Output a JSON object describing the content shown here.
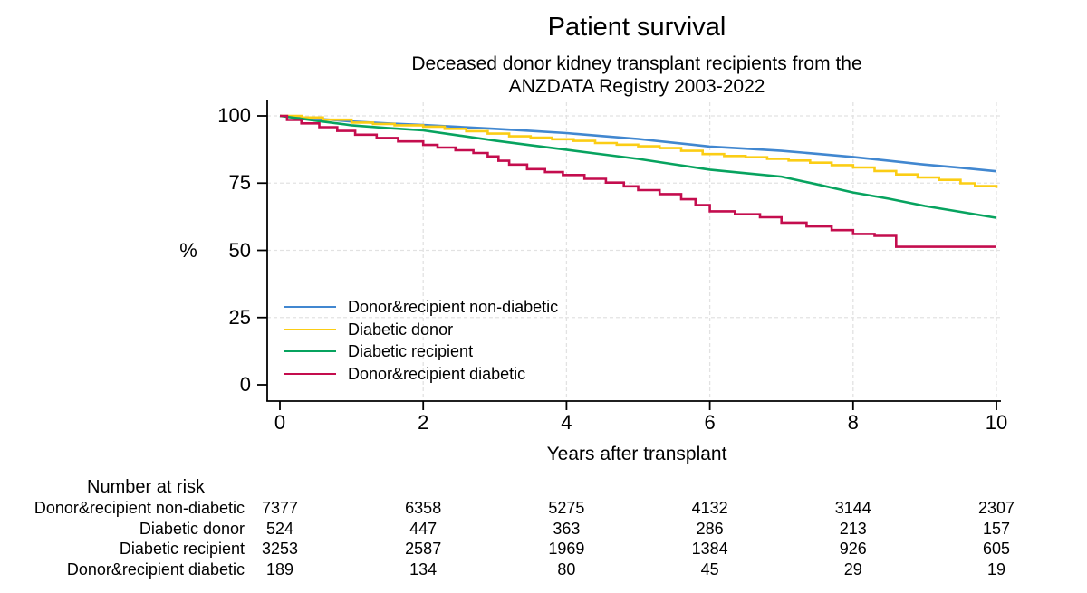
{
  "header": {
    "title": "Patient survival",
    "subtitle_line1": "Deceased donor kidney transplant recipients from the",
    "subtitle_line2": "ANZDATA Registry 2003-2022"
  },
  "chart_data": {
    "type": "line",
    "subtype": "kaplan-meier-survival",
    "title": "Patient survival",
    "subtitle": "Deceased donor kidney transplant recipients from the ANZDATA Registry 2003-2022",
    "xlabel": "Years after transplant",
    "ylabel": "%",
    "xlim": [
      0,
      10
    ],
    "ylim": [
      0,
      100
    ],
    "xticks": [
      0,
      2,
      4,
      6,
      8,
      10
    ],
    "yticks": [
      0,
      25,
      50,
      75,
      100
    ],
    "grid": "dashed light-gray at x 2,4,6,8,10 and y 25,50,75,100",
    "legend_position": "inside lower-left",
    "axis_color": "#000000",
    "grid_color": "#e2e2e2",
    "series": [
      {
        "name": "Donor&recipient non-diabetic",
        "color": "#4187d0",
        "step": false,
        "points": [
          [
            0,
            100
          ],
          [
            0.5,
            99.0
          ],
          [
            1,
            97.9
          ],
          [
            1.5,
            97.2
          ],
          [
            2,
            96.6
          ],
          [
            2.5,
            95.9
          ],
          [
            3,
            95.2
          ],
          [
            3.5,
            94.4
          ],
          [
            4,
            93.6
          ],
          [
            4.5,
            92.5
          ],
          [
            5,
            91.4
          ],
          [
            5.5,
            90.0
          ],
          [
            6,
            88.6
          ],
          [
            6.5,
            87.8
          ],
          [
            7,
            87.0
          ],
          [
            7.5,
            85.9
          ],
          [
            8,
            84.7
          ],
          [
            8.5,
            83.3
          ],
          [
            9,
            81.9
          ],
          [
            9.5,
            80.7
          ],
          [
            10,
            79.4
          ]
        ]
      },
      {
        "name": "Diabetic donor",
        "color": "#fbcd15",
        "step": true,
        "points": [
          [
            0,
            100
          ],
          [
            0.3,
            99.4
          ],
          [
            0.6,
            98.6
          ],
          [
            1,
            97.5
          ],
          [
            1.3,
            97.0
          ],
          [
            1.6,
            96.5
          ],
          [
            2,
            96.0
          ],
          [
            2.3,
            95.2
          ],
          [
            2.6,
            94.3
          ],
          [
            2.9,
            93.4
          ],
          [
            3.2,
            92.4
          ],
          [
            3.5,
            91.9
          ],
          [
            3.8,
            91.3
          ],
          [
            4.1,
            90.7
          ],
          [
            4.4,
            89.9
          ],
          [
            4.7,
            89.3
          ],
          [
            5,
            88.7
          ],
          [
            5.3,
            88.0
          ],
          [
            5.6,
            87.0
          ],
          [
            5.9,
            85.8
          ],
          [
            6.2,
            85.1
          ],
          [
            6.5,
            84.6
          ],
          [
            6.8,
            84.0
          ],
          [
            7.1,
            83.4
          ],
          [
            7.4,
            82.6
          ],
          [
            7.7,
            81.7
          ],
          [
            8,
            80.8
          ],
          [
            8.3,
            79.5
          ],
          [
            8.6,
            78.2
          ],
          [
            8.9,
            77.1
          ],
          [
            9.2,
            76.2
          ],
          [
            9.5,
            74.9
          ],
          [
            9.7,
            73.9
          ],
          [
            10,
            73.2
          ]
        ]
      },
      {
        "name": "Diabetic recipient",
        "color": "#07a35f",
        "step": false,
        "points": [
          [
            0,
            100
          ],
          [
            0.5,
            98.2
          ],
          [
            1,
            96.5
          ],
          [
            1.5,
            95.5
          ],
          [
            2,
            94.6
          ],
          [
            2.5,
            92.7
          ],
          [
            3,
            90.8
          ],
          [
            3.5,
            89.1
          ],
          [
            4,
            87.4
          ],
          [
            4.5,
            85.7
          ],
          [
            5,
            84.0
          ],
          [
            5.5,
            82.0
          ],
          [
            6,
            80.0
          ],
          [
            6.5,
            78.7
          ],
          [
            7,
            77.4
          ],
          [
            7.5,
            74.5
          ],
          [
            8,
            71.5
          ],
          [
            8.5,
            69.2
          ],
          [
            9,
            66.5
          ],
          [
            9.5,
            64.3
          ],
          [
            10,
            62.1
          ]
        ]
      },
      {
        "name": "Donor&recipient diabetic",
        "color": "#c40d4e",
        "step": true,
        "points": [
          [
            0,
            100
          ],
          [
            0.1,
            98.5
          ],
          [
            0.3,
            97.2
          ],
          [
            0.55,
            95.8
          ],
          [
            0.8,
            94.4
          ],
          [
            1.05,
            93.0
          ],
          [
            1.35,
            91.8
          ],
          [
            1.65,
            90.5
          ],
          [
            2,
            89.2
          ],
          [
            2.2,
            88.2
          ],
          [
            2.45,
            87.2
          ],
          [
            2.7,
            86.2
          ],
          [
            2.9,
            84.9
          ],
          [
            3.05,
            83.3
          ],
          [
            3.2,
            81.9
          ],
          [
            3.45,
            80.2
          ],
          [
            3.7,
            79.1
          ],
          [
            3.95,
            78.0
          ],
          [
            4.25,
            76.6
          ],
          [
            4.55,
            75.2
          ],
          [
            4.8,
            73.8
          ],
          [
            5,
            72.4
          ],
          [
            5.3,
            70.9
          ],
          [
            5.6,
            69.0
          ],
          [
            5.8,
            66.8
          ],
          [
            6,
            64.5
          ],
          [
            6.35,
            63.4
          ],
          [
            6.7,
            62.3
          ],
          [
            7,
            60.3
          ],
          [
            7.35,
            58.9
          ],
          [
            7.7,
            57.5
          ],
          [
            8,
            56.1
          ],
          [
            8.3,
            55.4
          ],
          [
            8.6,
            51.3
          ],
          [
            10,
            51.3
          ]
        ]
      }
    ],
    "number_at_risk": {
      "title": "Number at risk",
      "columns_years": [
        0,
        2,
        4,
        6,
        8,
        10
      ],
      "rows": [
        {
          "label": "Donor&recipient non-diabetic",
          "values": [
            "7377",
            "6358",
            "5275",
            "4132",
            "3144",
            "2307"
          ]
        },
        {
          "label": "Diabetic donor",
          "values": [
            "524",
            "447",
            "363",
            "286",
            "213",
            "157"
          ]
        },
        {
          "label": "Diabetic recipient",
          "values": [
            "3253",
            "2587",
            "1969",
            "1384",
            "926",
            "605"
          ]
        },
        {
          "label": "Donor&recipient diabetic",
          "values": [
            "189",
            "134",
            "80",
            "45",
            "29",
            "19"
          ]
        }
      ]
    }
  }
}
